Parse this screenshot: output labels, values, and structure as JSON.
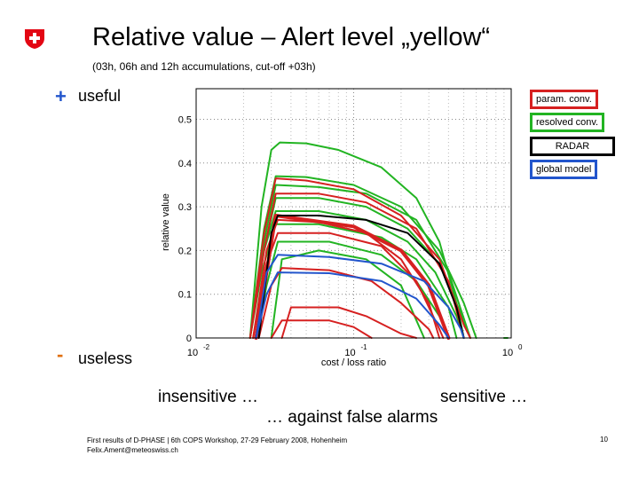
{
  "slide": {
    "title": "Relative value – Alert level „yellow“",
    "subtitle": "(03h, 06h and 12h accumulations, cut-off +03h)",
    "useful_label": "useful",
    "useless_label": "useless",
    "plus_marker": "+",
    "minus_marker": "-",
    "insensitive_label": "insensitive …",
    "sensitive_label": "sensitive …",
    "against_label": "… against false alarms",
    "footer_line1": "First results of D-PHASE | 6th COPS Workshop, 27-29 February 2008, Hohenheim",
    "footer_line2": "Felix.Ament@meteoswiss.ch",
    "page_number": "10",
    "logo_color": "#e30613"
  },
  "chart_data": {
    "type": "line",
    "xlabel": "cost / loss ratio",
    "ylabel": "relative value",
    "x_scale": "log",
    "xlim": [
      0.01,
      1
    ],
    "ylim": [
      0,
      0.57
    ],
    "grid": "dotted",
    "y_ticks": [
      "0",
      "0.1",
      "0.2",
      "0.3",
      "0.4",
      "0.5"
    ],
    "x_ticks": [
      {
        "base": "10",
        "exp": "-2"
      },
      {
        "base": "10",
        "exp": "-1"
      },
      {
        "base": "10",
        "exp": "0"
      }
    ],
    "legend": [
      {
        "name": "param. conv.",
        "color": "#d62020"
      },
      {
        "name": "resolved conv.",
        "color": "#22b422"
      },
      {
        "name": "RADAR",
        "color": "#000000"
      },
      {
        "name": "global model",
        "color": "#2255cc"
      }
    ],
    "series": [
      {
        "color": "#22b422",
        "width": 2,
        "points": [
          [
            0.022,
            0
          ],
          [
            0.026,
            0.3
          ],
          [
            0.03,
            0.43
          ],
          [
            0.034,
            0.447
          ],
          [
            0.05,
            0.445
          ],
          [
            0.08,
            0.43
          ],
          [
            0.15,
            0.39
          ],
          [
            0.25,
            0.32
          ],
          [
            0.35,
            0.22
          ],
          [
            0.45,
            0.08
          ],
          [
            0.5,
            0
          ]
        ]
      },
      {
        "color": "#22b422",
        "width": 2,
        "points": [
          [
            0.022,
            0
          ],
          [
            0.027,
            0.25
          ],
          [
            0.032,
            0.37
          ],
          [
            0.05,
            0.368
          ],
          [
            0.1,
            0.35
          ],
          [
            0.2,
            0.3
          ],
          [
            0.35,
            0.2
          ],
          [
            0.5,
            0.08
          ],
          [
            0.6,
            0
          ]
        ]
      },
      {
        "color": "#22b422",
        "width": 2,
        "points": [
          [
            0.022,
            0
          ],
          [
            0.027,
            0.22
          ],
          [
            0.032,
            0.35
          ],
          [
            0.06,
            0.345
          ],
          [
            0.12,
            0.33
          ],
          [
            0.25,
            0.27
          ],
          [
            0.4,
            0.15
          ],
          [
            0.55,
            0
          ]
        ]
      },
      {
        "color": "#22b422",
        "width": 2,
        "points": [
          [
            0.022,
            0
          ],
          [
            0.027,
            0.2
          ],
          [
            0.032,
            0.32
          ],
          [
            0.06,
            0.32
          ],
          [
            0.12,
            0.3
          ],
          [
            0.22,
            0.25
          ],
          [
            0.35,
            0.17
          ],
          [
            0.5,
            0.04
          ],
          [
            0.55,
            0
          ]
        ]
      },
      {
        "color": "#22b422",
        "width": 2,
        "points": [
          [
            0.022,
            0
          ],
          [
            0.026,
            0.18
          ],
          [
            0.032,
            0.29
          ],
          [
            0.06,
            0.29
          ],
          [
            0.12,
            0.27
          ],
          [
            0.22,
            0.22
          ],
          [
            0.33,
            0.15
          ],
          [
            0.45,
            0.05
          ],
          [
            0.5,
            0
          ]
        ]
      },
      {
        "color": "#22b422",
        "width": 2,
        "points": [
          [
            0.022,
            0
          ],
          [
            0.026,
            0.15
          ],
          [
            0.032,
            0.26
          ],
          [
            0.06,
            0.26
          ],
          [
            0.15,
            0.23
          ],
          [
            0.25,
            0.18
          ],
          [
            0.4,
            0.07
          ],
          [
            0.45,
            0
          ]
        ]
      },
      {
        "color": "#22b422",
        "width": 2,
        "points": [
          [
            0.024,
            0
          ],
          [
            0.028,
            0.12
          ],
          [
            0.033,
            0.22
          ],
          [
            0.07,
            0.22
          ],
          [
            0.15,
            0.19
          ],
          [
            0.25,
            0.13
          ],
          [
            0.35,
            0.05
          ],
          [
            0.4,
            0
          ]
        ]
      },
      {
        "color": "#22b422",
        "width": 2,
        "points": [
          [
            0.03,
            0
          ],
          [
            0.035,
            0.18
          ],
          [
            0.06,
            0.2
          ],
          [
            0.12,
            0.18
          ],
          [
            0.2,
            0.12
          ],
          [
            0.28,
            0
          ]
        ]
      },
      {
        "color": "#22b422",
        "width": 2,
        "points": [
          [
            0.9,
            0
          ],
          [
            0.95,
            0
          ]
        ]
      },
      {
        "color": "#d62020",
        "width": 2,
        "points": [
          [
            0.022,
            0
          ],
          [
            0.027,
            0.24
          ],
          [
            0.032,
            0.365
          ],
          [
            0.05,
            0.36
          ],
          [
            0.1,
            0.34
          ],
          [
            0.2,
            0.28
          ],
          [
            0.35,
            0.18
          ],
          [
            0.5,
            0.03
          ],
          [
            0.55,
            0
          ]
        ]
      },
      {
        "color": "#d62020",
        "width": 2,
        "points": [
          [
            0.022,
            0
          ],
          [
            0.027,
            0.2
          ],
          [
            0.032,
            0.33
          ],
          [
            0.06,
            0.33
          ],
          [
            0.12,
            0.31
          ],
          [
            0.25,
            0.25
          ],
          [
            0.4,
            0.13
          ],
          [
            0.5,
            0
          ]
        ]
      },
      {
        "color": "#d62020",
        "width": 4,
        "points": [
          [
            0.024,
            0
          ],
          [
            0.028,
            0.15
          ],
          [
            0.032,
            0.28
          ],
          [
            0.05,
            0.27
          ],
          [
            0.1,
            0.255
          ],
          [
            0.2,
            0.2
          ],
          [
            0.3,
            0.12
          ],
          [
            0.4,
            0
          ]
        ]
      },
      {
        "color": "#d62020",
        "width": 2,
        "points": [
          [
            0.023,
            0
          ],
          [
            0.028,
            0.2
          ],
          [
            0.033,
            0.27
          ],
          [
            0.06,
            0.265
          ],
          [
            0.12,
            0.24
          ],
          [
            0.2,
            0.18
          ],
          [
            0.3,
            0.08
          ],
          [
            0.35,
            0
          ]
        ]
      },
      {
        "color": "#d62020",
        "width": 2,
        "points": [
          [
            0.023,
            0
          ],
          [
            0.028,
            0.17
          ],
          [
            0.033,
            0.24
          ],
          [
            0.07,
            0.24
          ],
          [
            0.15,
            0.21
          ],
          [
            0.25,
            0.13
          ],
          [
            0.35,
            0.02
          ],
          [
            0.37,
            0
          ]
        ]
      },
      {
        "color": "#d62020",
        "width": 2,
        "points": [
          [
            0.025,
            0
          ],
          [
            0.03,
            0.12
          ],
          [
            0.035,
            0.16
          ],
          [
            0.07,
            0.155
          ],
          [
            0.13,
            0.13
          ],
          [
            0.2,
            0.08
          ],
          [
            0.3,
            0.02
          ],
          [
            0.32,
            0
          ]
        ]
      },
      {
        "color": "#d62020",
        "width": 2,
        "points": [
          [
            0.03,
            0
          ],
          [
            0.035,
            0.04
          ],
          [
            0.07,
            0.04
          ],
          [
            0.1,
            0.025
          ],
          [
            0.13,
            0
          ]
        ]
      },
      {
        "color": "#d62020",
        "width": 2,
        "points": [
          [
            0.035,
            0
          ],
          [
            0.04,
            0.07
          ],
          [
            0.08,
            0.07
          ],
          [
            0.12,
            0.05
          ],
          [
            0.2,
            0.01
          ],
          [
            0.25,
            0
          ]
        ]
      },
      {
        "color": "#000000",
        "width": 2,
        "points": [
          [
            0.025,
            0
          ],
          [
            0.03,
            0.24
          ],
          [
            0.033,
            0.28
          ],
          [
            0.06,
            0.28
          ],
          [
            0.12,
            0.27
          ],
          [
            0.22,
            0.24
          ],
          [
            0.35,
            0.17
          ],
          [
            0.45,
            0.07
          ],
          [
            0.5,
            0
          ]
        ]
      },
      {
        "color": "#2255cc",
        "width": 2,
        "points": [
          [
            0.024,
            0
          ],
          [
            0.028,
            0.15
          ],
          [
            0.033,
            0.19
          ],
          [
            0.07,
            0.185
          ],
          [
            0.15,
            0.17
          ],
          [
            0.28,
            0.13
          ],
          [
            0.4,
            0.07
          ],
          [
            0.48,
            0.02
          ],
          [
            0.5,
            0
          ]
        ]
      },
      {
        "color": "#2255cc",
        "width": 2,
        "points": [
          [
            0.024,
            0
          ],
          [
            0.028,
            0.1
          ],
          [
            0.033,
            0.15
          ],
          [
            0.07,
            0.148
          ],
          [
            0.15,
            0.13
          ],
          [
            0.25,
            0.09
          ],
          [
            0.35,
            0.03
          ],
          [
            0.4,
            0
          ]
        ]
      }
    ]
  }
}
